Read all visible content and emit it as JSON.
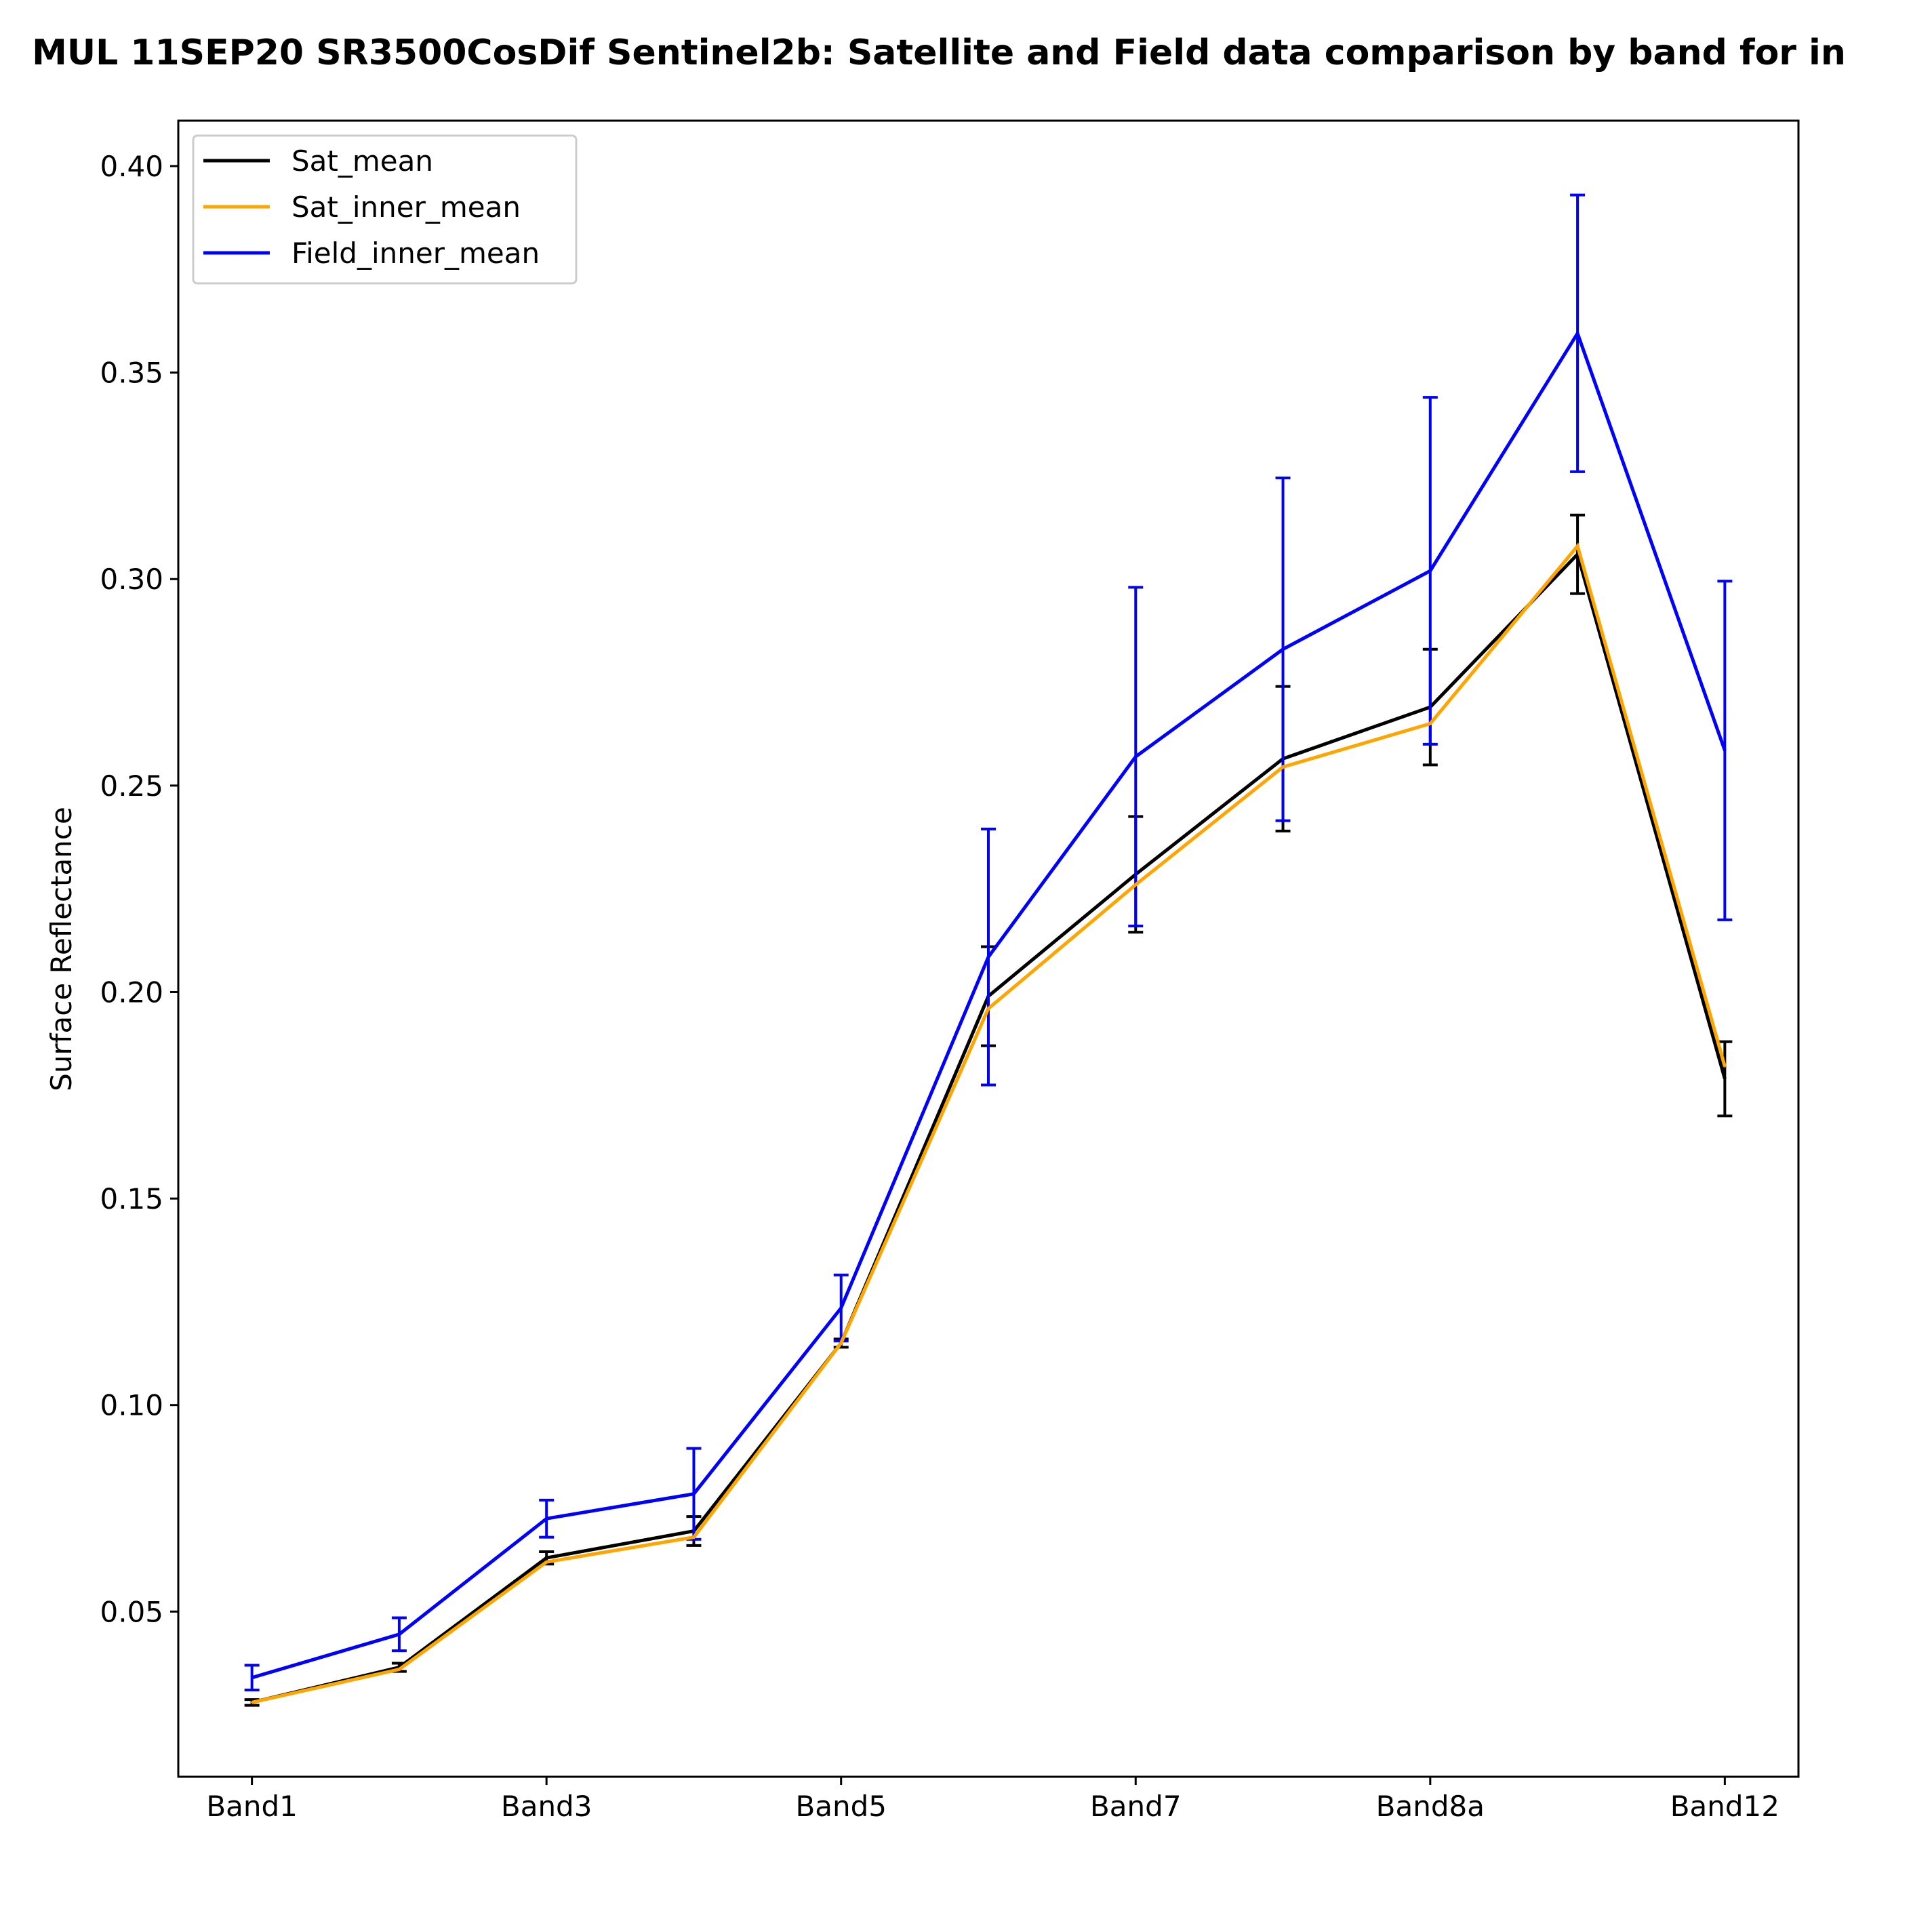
{
  "chart_data": {
    "type": "line",
    "title": "MUL 11SEP20 SR3500CosDif Sentinel2b: Satellite and Field data comparison by band for in",
    "xlabel": "",
    "ylabel": "Surface Reflectance",
    "x_tick_labels": [
      "Band1",
      "Band3",
      "Band5",
      "Band7",
      "Band8a",
      "Band12"
    ],
    "x_tick_positions": [
      0,
      2,
      4,
      6,
      8,
      10
    ],
    "xlim": [
      -0.5,
      10.5
    ],
    "ylim": [
      0.01,
      0.411
    ],
    "y_ticks": [
      0.05,
      0.1,
      0.15,
      0.2,
      0.25,
      0.3,
      0.35,
      0.4
    ],
    "y_tick_labels": [
      "0.05",
      "0.10",
      "0.15",
      "0.20",
      "0.25",
      "0.30",
      "0.35",
      "0.40"
    ],
    "grid": false,
    "legend_position": "top-left",
    "series": [
      {
        "name": "Sat_mean",
        "color": "#000000",
        "x": [
          0,
          1,
          2,
          3,
          4,
          5,
          6,
          7,
          8,
          9,
          10
        ],
        "values": [
          0.028,
          0.0365,
          0.063,
          0.0695,
          0.115,
          0.199,
          0.2285,
          0.2565,
          0.269,
          0.306,
          0.179
        ],
        "errors": [
          0.0007,
          0.001,
          0.0015,
          0.0035,
          0.001,
          0.012,
          0.014,
          0.0175,
          0.014,
          0.0095,
          0.009
        ]
      },
      {
        "name": "Sat_inner_mean",
        "color": "#FFA500",
        "x": [
          0,
          1,
          2,
          3,
          4,
          5,
          6,
          7,
          8,
          9,
          10
        ],
        "values": [
          0.028,
          0.036,
          0.062,
          0.068,
          0.115,
          0.196,
          0.226,
          0.2545,
          0.265,
          0.308,
          0.182
        ],
        "errors": null
      },
      {
        "name": "Field_inner_mean",
        "color": "#0000FF",
        "x": [
          0,
          1,
          2,
          3,
          4,
          5,
          6,
          7,
          8,
          9,
          10
        ],
        "values": [
          0.034,
          0.0445,
          0.0725,
          0.0785,
          0.1235,
          0.2085,
          0.257,
          0.283,
          0.302,
          0.3595,
          0.2585
        ],
        "errors": [
          0.003,
          0.004,
          0.0045,
          0.011,
          0.008,
          0.031,
          0.041,
          0.0415,
          0.042,
          0.0335,
          0.041
        ]
      }
    ]
  }
}
